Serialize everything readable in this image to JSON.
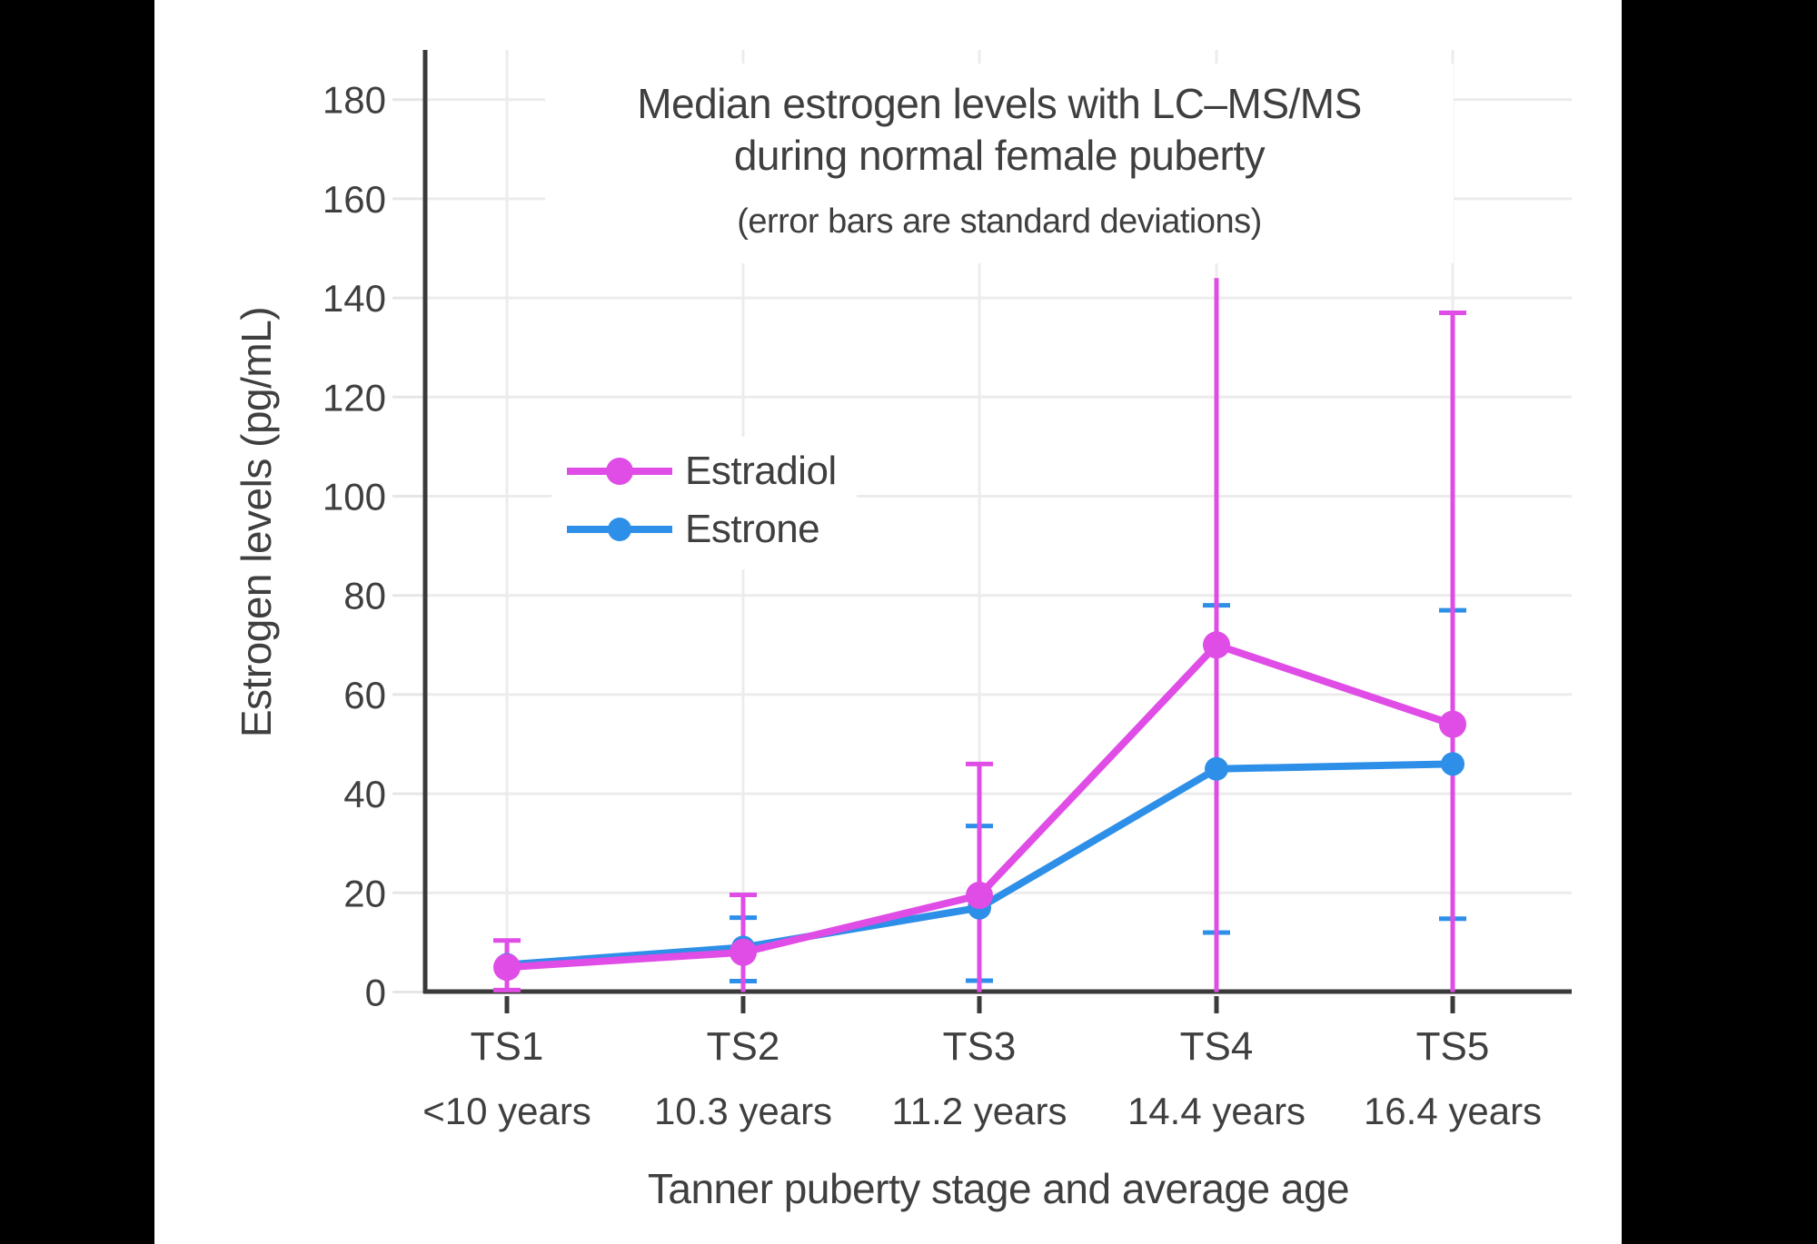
{
  "page": {
    "background_color": "#000000",
    "canvas_color": "#ffffff",
    "text_color": "#3f3f3f",
    "axis_color": "#3a3a3a",
    "gridline_color": "#ececec"
  },
  "chart_data": {
    "type": "line",
    "title": "Median estrogen levels with LC–MS/MS during normal female puberty",
    "title_line1": "Median estrogen levels with LC–MS/MS",
    "title_line2": "during normal female puberty",
    "subtitle": "(error bars are standard deviations)",
    "xlabel": "Tanner puberty stage and average age",
    "ylabel": "Estrogen levels (pg/mL)",
    "ylim": [
      0,
      190
    ],
    "yticks": [
      0,
      20,
      40,
      60,
      80,
      100,
      120,
      140,
      160,
      180
    ],
    "grid": true,
    "legend_position": "inside upper-left",
    "error_bar_note": "error bars are standard deviations; lower estradiol bars clipped at 0",
    "categories": [
      "TS1",
      "TS2",
      "TS3",
      "TS4",
      "TS5"
    ],
    "category_ages": [
      "<10 years",
      "10.3 years",
      "11.2 years",
      "14.4 years",
      "16.4 years"
    ],
    "series": [
      {
        "name": "Estradiol",
        "color": "#E04DE6",
        "unit": "pg/mL",
        "values": [
          5,
          8,
          19.5,
          70,
          54
        ],
        "error_bar_top": [
          10.4,
          19.6,
          46,
          144,
          137
        ],
        "error_bar_bottom": [
          0.4,
          0,
          0,
          0,
          0
        ],
        "cap_top": [
          true,
          true,
          true,
          false,
          true
        ],
        "cap_bottom": [
          true,
          false,
          false,
          false,
          false
        ]
      },
      {
        "name": "Estrone",
        "color": "#2E8FE8",
        "unit": "pg/mL",
        "values": [
          5.5,
          9,
          17,
          45,
          46
        ],
        "error_bar_top": [
          null,
          15,
          33.5,
          78,
          77
        ],
        "error_bar_bottom": [
          null,
          2.2,
          2.3,
          12,
          14.8
        ],
        "cap_top": [
          false,
          true,
          true,
          true,
          true
        ],
        "cap_bottom": [
          false,
          true,
          true,
          true,
          true
        ]
      }
    ]
  }
}
